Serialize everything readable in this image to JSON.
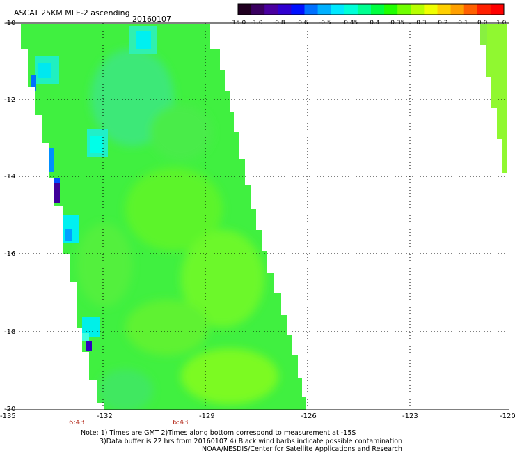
{
  "header": {
    "title": "ASCAT 25KM MLE-2 ascending",
    "date": "20160107"
  },
  "colorbar": {
    "colors": [
      "#200020",
      "#3a0060",
      "#4a00a0",
      "#3000d0",
      "#0010ff",
      "#0070ff",
      "#00b0ff",
      "#00e8ff",
      "#00ffd8",
      "#00ff90",
      "#00ff40",
      "#20ff00",
      "#70ff00",
      "#b8ff00",
      "#f0ff00",
      "#ffd000",
      "#ffa000",
      "#ff6000",
      "#ff2000",
      "#ff0000"
    ],
    "tick_labels": [
      "-15.0",
      "-1.0",
      "-0.8",
      "-0.6",
      "-0.5",
      "-0.45",
      "-0.4",
      "-0.35",
      "-0.3",
      "-0.2",
      "-0.1",
      "0.0",
      "1.0"
    ]
  },
  "axes": {
    "y_labels": [
      "-10",
      "-12",
      "-14",
      "-16",
      "-18",
      "-20"
    ],
    "x_labels": [
      "-135",
      "-132",
      "-129",
      "-126",
      "-123",
      "-120"
    ]
  },
  "times": [
    "6:43",
    "6:43"
  ],
  "notes": [
    "Note: 1) Times are GMT 2)Times along bottom correspond to measurement at -15S",
    "3)Data buffer is 22 hrs from 20160107 4) Black wind barbs indicate possible contamination",
    "NOAA/NESDIS/Center for Satellite Applications and Research"
  ],
  "colors": {
    "swath_base": "#40f040",
    "grid": "#000000"
  }
}
